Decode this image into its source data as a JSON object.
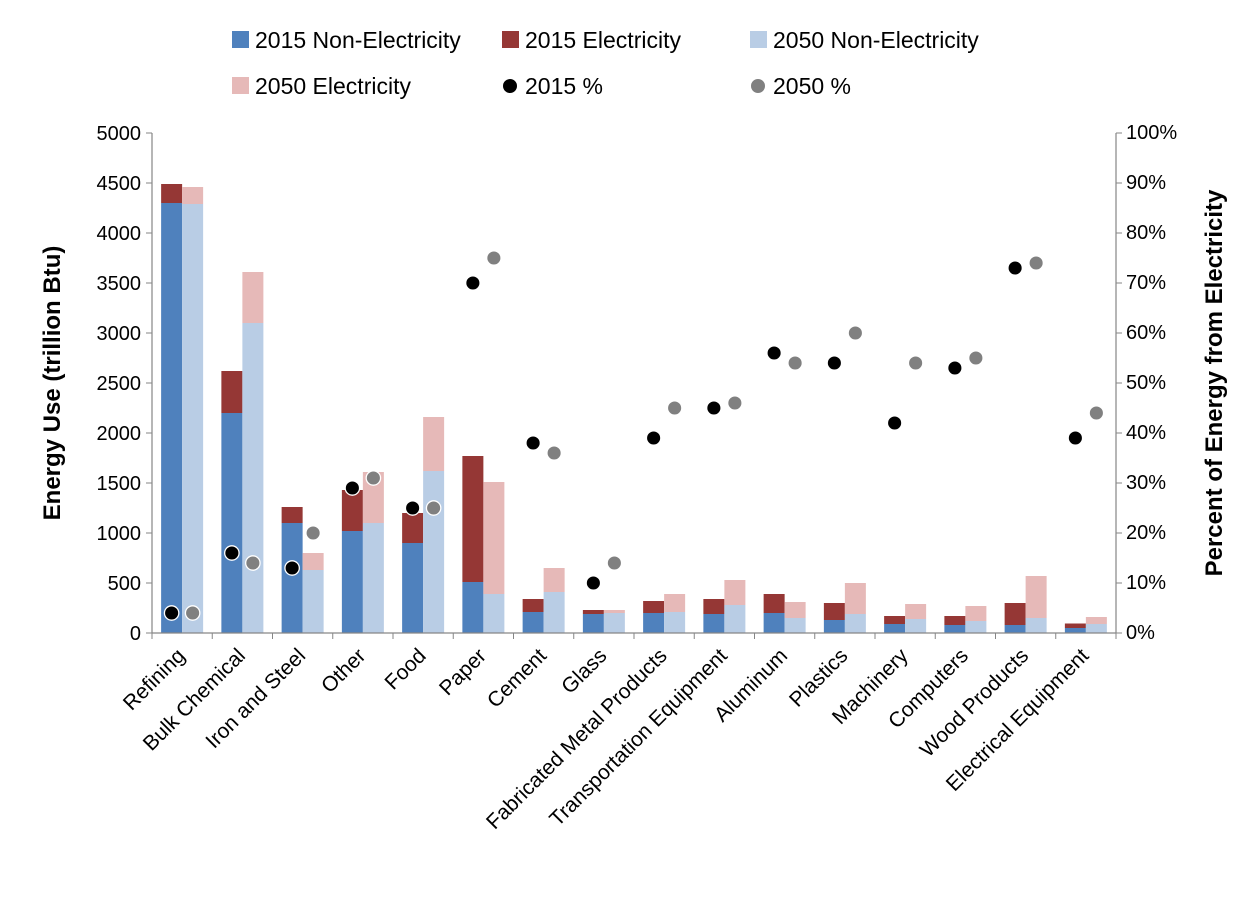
{
  "chart_data": {
    "type": "bar",
    "subtype": "paired stacked columns with secondary-axis scatter",
    "categories": [
      "Refining",
      "Bulk Chemical",
      "Iron and Steel",
      "Other",
      "Food",
      "Paper",
      "Cement",
      "Glass",
      "Fabricated Metal Products",
      "Transportation Equipment",
      "Aluminum",
      "Plastics",
      "Machinery",
      "Computers",
      "Wood Products",
      "Electrical Equipment"
    ],
    "series": [
      {
        "name": "2015 Non-Electricity",
        "axis": "left",
        "group": "2015",
        "color": "#4f81bd",
        "values": [
          4300,
          2200,
          1100,
          1020,
          900,
          510,
          210,
          190,
          200,
          190,
          200,
          130,
          90,
          80,
          80,
          50
        ]
      },
      {
        "name": "2015 Electricity",
        "axis": "left",
        "group": "2015",
        "color": "#953735",
        "values": [
          190,
          420,
          160,
          410,
          300,
          1260,
          130,
          40,
          120,
          150,
          190,
          170,
          80,
          90,
          220,
          45
        ]
      },
      {
        "name": "2050 Non-Electricity",
        "axis": "left",
        "group": "2050",
        "color": "#b9cde5",
        "values": [
          4290,
          3100,
          630,
          1100,
          1620,
          390,
          410,
          200,
          210,
          280,
          150,
          190,
          140,
          120,
          150,
          90
        ]
      },
      {
        "name": "2050 Electricity",
        "axis": "left",
        "group": "2050",
        "color": "#e6b9b8",
        "values": [
          170,
          510,
          170,
          510,
          540,
          1120,
          240,
          30,
          180,
          250,
          160,
          310,
          150,
          150,
          420,
          70
        ]
      },
      {
        "name": "2015 %",
        "axis": "right",
        "kind": "scatter",
        "color": "#000000",
        "values": [
          4,
          16,
          13,
          29,
          25,
          70,
          38,
          10,
          39,
          45,
          56,
          54,
          42,
          53,
          73,
          39
        ]
      },
      {
        "name": "2050 %",
        "axis": "right",
        "kind": "scatter",
        "color": "#808080",
        "values": [
          4,
          14,
          20,
          31,
          25,
          75,
          36,
          14,
          45,
          46,
          54,
          60,
          54,
          55,
          74,
          44
        ]
      }
    ],
    "y_left": {
      "label": "Energy Use (trillion Btu)",
      "ylim": [
        0,
        5000
      ],
      "ticks": [
        "0",
        "500",
        "1000",
        "1500",
        "2000",
        "2500",
        "3000",
        "3500",
        "4000",
        "4500",
        "5000"
      ]
    },
    "y_right": {
      "label": "Percent of Energy from Electricity",
      "ylim": [
        0,
        100
      ],
      "ticks": [
        "0%",
        "10%",
        "20%",
        "30%",
        "40%",
        "50%",
        "60%",
        "70%",
        "80%",
        "90%",
        "100%"
      ]
    },
    "grid": false,
    "legend_position": "top"
  }
}
